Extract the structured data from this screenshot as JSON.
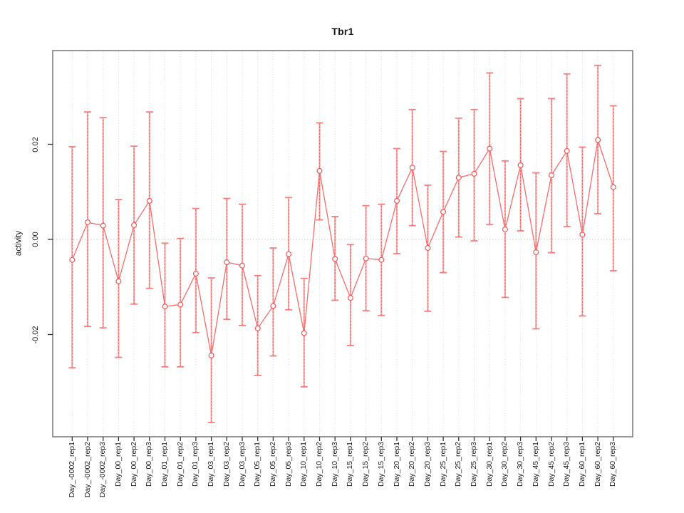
{
  "window": {
    "title": "Tbr1"
  },
  "chart_data": {
    "type": "scatter",
    "title": "Tbr1",
    "xlabel": "",
    "ylabel": "activity",
    "legend": "none",
    "grid": "vertical dotted gridline at every category; dotted horizontal reference line at y=0",
    "ylim": [
      -0.0415,
      0.0397
    ],
    "yticks": [
      {
        "value": 0.02,
        "label": "0.02"
      },
      {
        "value": 0.0,
        "label": "0.00"
      },
      {
        "value": -0.02,
        "label": "-0.02"
      }
    ],
    "categories": [
      "Day_-0002_rep1",
      "Day_-0002_rep2",
      "Day_-0002_rep3",
      "Day_00_rep1",
      "Day_00_rep2",
      "Day_00_rep3",
      "Day_01_rep1",
      "Day_01_rep2",
      "Day_01_rep3",
      "Day_03_rep1",
      "Day_03_rep2",
      "Day_03_rep3",
      "Day_05_rep1",
      "Day_05_rep2",
      "Day_05_rep3",
      "Day_10_rep1",
      "Day_10_rep2",
      "Day_10_rep3",
      "Day_15_rep1",
      "Day_15_rep2",
      "Day_15_rep3",
      "Day_20_rep1",
      "Day_20_rep2",
      "Day_20_rep3",
      "Day_25_rep1",
      "Day_25_rep2",
      "Day_25_rep3",
      "Day_30_rep1",
      "Day_30_rep2",
      "Day_30_rep3",
      "Day_45_rep1",
      "Day_45_rep2",
      "Day_45_rep3",
      "Day_60_rep1",
      "Day_60_rep2",
      "Day_60_rep3"
    ],
    "series": [
      {
        "name": "activity",
        "marker": "open-circle",
        "values": [
          -0.0043,
          0.0036,
          0.0029,
          -0.0088,
          0.003,
          0.0081,
          -0.0141,
          -0.0137,
          -0.0072,
          -0.0244,
          -0.0048,
          -0.0055,
          -0.0187,
          -0.014,
          -0.0031,
          -0.0197,
          0.0144,
          -0.0041,
          -0.0123,
          -0.004,
          -0.0043,
          0.0081,
          0.0151,
          -0.0018,
          0.0058,
          0.013,
          0.0138,
          0.0191,
          0.0021,
          0.0156,
          -0.0027,
          0.0135,
          0.0186,
          0.001,
          0.0209,
          0.011
        ],
        "error_low": [
          -0.027,
          -0.0183,
          -0.0186,
          -0.0248,
          -0.0136,
          -0.0103,
          -0.0268,
          -0.0268,
          -0.0196,
          -0.0385,
          -0.0168,
          -0.0181,
          -0.0286,
          -0.0245,
          -0.0148,
          -0.031,
          0.0041,
          -0.0128,
          -0.0223,
          -0.015,
          -0.016,
          -0.003,
          0.0029,
          -0.0151,
          -0.007,
          0.0005,
          -0.0003,
          0.0031,
          -0.0122,
          0.0018,
          -0.0188,
          -0.0028,
          0.0027,
          -0.0161,
          0.0054,
          -0.0066
        ],
        "error_high": [
          0.0195,
          0.0268,
          0.0256,
          0.0084,
          0.0196,
          0.0268,
          -0.0008,
          0.0002,
          0.0065,
          -0.0081,
          0.0086,
          0.0074,
          -0.0076,
          -0.0018,
          0.0088,
          -0.0082,
          0.0245,
          0.0048,
          -0.0011,
          0.0071,
          0.0074,
          0.0191,
          0.0273,
          0.0114,
          0.0185,
          0.0255,
          0.0273,
          0.035,
          0.0165,
          0.0296,
          0.014,
          0.0296,
          0.0348,
          0.0194,
          0.0366,
          0.0281
        ]
      }
    ],
    "colors": {
      "point": "#f25757",
      "line": "#f46c6c",
      "errorbar_light": "#f9abab",
      "errorbar_dash": "#ef6060",
      "errorbar_cap": "#f57f7f",
      "grid": "#dcdcdc",
      "zero_line": "#c9c9c9",
      "box": "#7f7f7f",
      "tick": "#333333"
    }
  }
}
